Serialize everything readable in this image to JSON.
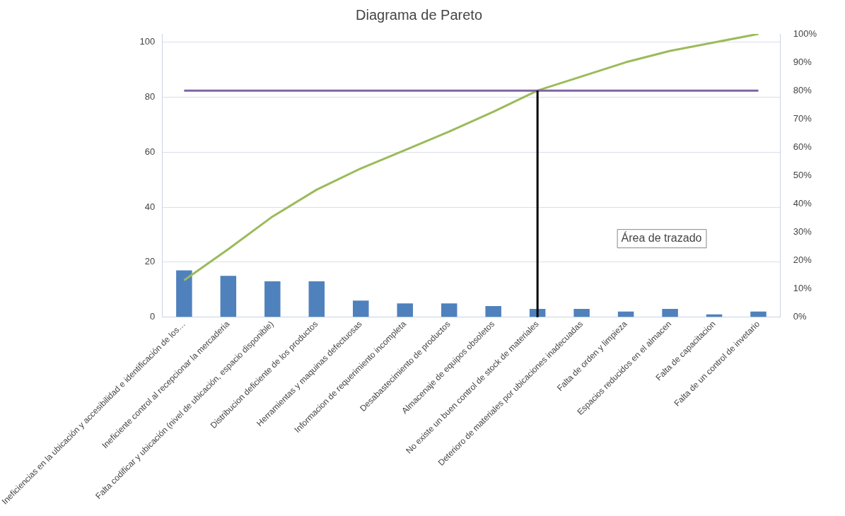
{
  "chart_data": {
    "type": "bar",
    "title": "Diagrama de Pareto",
    "categories": [
      "Ineficiencias en la ubicación y accesibilidad e identificación de los…",
      "Ineficiente control al recepcionar la mercaderia",
      "Falta codificar y ubicación (nivel de ubicación, espacio disponible)",
      "Distribucion deficiente de los productos",
      "Herramientas y maquinas defectuosas",
      "Informacion de requerimiento incompleta",
      "Desabastecimiento de productos",
      "Almacenaje de equipos obsoletos",
      "No existe un buen control de stock de materiales",
      "Deterioro de materiales por ubicaciones inadecuadas",
      "Falta de orden y limpieza",
      "Espacios reducidos en el almacen",
      "Falta de capacitacion",
      "Falta de un control de invetario"
    ],
    "series": [
      {
        "color": "#4f81bd",
        "values": [
          17,
          15,
          13,
          13,
          6,
          5,
          5,
          4,
          3,
          3,
          2,
          3,
          1,
          2
        ]
      },
      {
        "type": "line",
        "axis": "y2",
        "color": "#9bbb59",
        "values": [
          13,
          24,
          35.5,
          45,
          52.5,
          59,
          65.5,
          72.5,
          80,
          85,
          90,
          94,
          97,
          100
        ]
      }
    ],
    "ylim": [
      0,
      103
    ],
    "yticks": [
      0,
      20,
      40,
      60,
      80,
      100
    ],
    "y2lim": [
      0,
      100
    ],
    "y2ticks": [
      {
        "value": 0,
        "label": "0%"
      },
      {
        "value": 10,
        "label": "10%"
      },
      {
        "value": 20,
        "label": "20%"
      },
      {
        "value": 30,
        "label": "30%"
      },
      {
        "value": 40,
        "label": "40%"
      },
      {
        "value": 50,
        "label": "50%"
      },
      {
        "value": 60,
        "label": "60%"
      },
      {
        "value": 70,
        "label": "70%"
      },
      {
        "value": 80,
        "label": "80%"
      },
      {
        "value": 90,
        "label": "90%"
      },
      {
        "value": 100,
        "label": "100%"
      }
    ],
    "ref_lines": [
      {
        "axis": "y2",
        "value": 80,
        "color": "#8064a2"
      },
      {
        "axis": "x",
        "value": "No existe un buen control de stock de materiales",
        "color": "#000000"
      }
    ],
    "annotations": [
      "Área de trazado"
    ],
    "grid": "y",
    "legend": false,
    "marker": "none",
    "line_style": "solid"
  }
}
